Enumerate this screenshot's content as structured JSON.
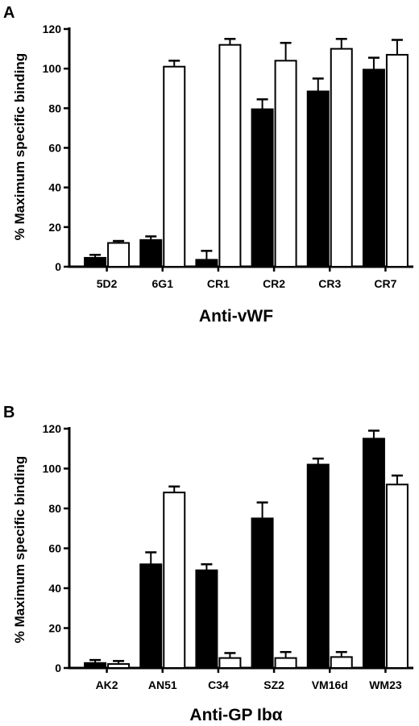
{
  "chart_data": [
    {
      "panel": "A",
      "type": "bar",
      "xlabel": "Anti-vWF",
      "ylabel": "% Maximum specific binding",
      "ylim": [
        0,
        120
      ],
      "yticks": [
        0,
        20,
        40,
        60,
        80,
        100,
        120
      ],
      "categories": [
        "5D2",
        "6G1",
        "CR1",
        "CR2",
        "CR3",
        "CR7"
      ],
      "series": [
        {
          "fill": "#000000",
          "values": [
            4.5,
            13.5,
            3.5,
            79.5,
            88.5,
            99.5
          ],
          "errors": [
            1.5,
            1.8,
            4.5,
            5,
            6.5,
            6
          ]
        },
        {
          "fill": "#ffffff",
          "values": [
            12,
            101,
            112,
            104,
            110,
            107
          ],
          "errors": [
            1,
            3,
            3,
            9,
            5,
            7.5
          ]
        }
      ],
      "grid": false
    },
    {
      "panel": "B",
      "type": "bar",
      "xlabel": "Anti-GP Ibα",
      "ylabel": "% Maximum specific binding",
      "ylim": [
        0,
        120
      ],
      "yticks": [
        0,
        20,
        40,
        60,
        80,
        100,
        120
      ],
      "categories": [
        "AK2",
        "AN51",
        "C34",
        "SZ2",
        "VM16d",
        "WM23"
      ],
      "series": [
        {
          "fill": "#000000",
          "values": [
            2.5,
            52,
            49,
            75,
            102,
            115
          ],
          "errors": [
            1.5,
            6,
            3,
            8,
            3,
            4
          ]
        },
        {
          "fill": "#ffffff",
          "values": [
            2,
            88,
            5,
            5,
            5.5,
            92
          ],
          "errors": [
            1.5,
            3,
            2.5,
            3,
            2.5,
            4.5
          ]
        }
      ],
      "grid": false
    }
  ]
}
